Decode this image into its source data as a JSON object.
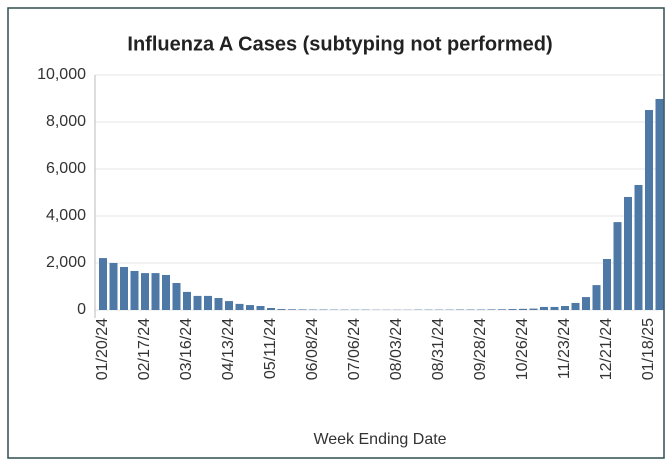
{
  "chart_data": {
    "type": "bar",
    "title": "Influenza A Cases (subtyping not performed)",
    "x_label": "Week Ending Date",
    "categories": [
      "01/20/24",
      null,
      null,
      null,
      "02/17/24",
      null,
      null,
      null,
      "03/16/24",
      null,
      null,
      null,
      "04/13/24",
      null,
      null,
      null,
      "05/11/24",
      null,
      null,
      null,
      "06/08/24",
      null,
      null,
      null,
      "07/06/24",
      null,
      null,
      null,
      "08/03/24",
      null,
      null,
      null,
      "08/31/24",
      null,
      null,
      null,
      "09/28/24",
      null,
      null,
      null,
      "10/26/24",
      null,
      null,
      null,
      "11/23/24",
      null,
      null,
      null,
      "12/21/24",
      null,
      null,
      null,
      "01/18/25",
      null
    ],
    "values": [
      2210,
      2000,
      1830,
      1660,
      1570,
      1570,
      1490,
      1150,
      770,
      600,
      600,
      510,
      380,
      260,
      210,
      170,
      85,
      40,
      30,
      25,
      20,
      20,
      15,
      15,
      15,
      15,
      10,
      10,
      10,
      10,
      15,
      15,
      15,
      15,
      20,
      20,
      20,
      25,
      30,
      40,
      50,
      60,
      130,
      130,
      170,
      300,
      550,
      1060,
      2170,
      3740,
      4810,
      5320,
      8510,
      8980
    ],
    "color": "#4e79a7",
    "ylim": [
      0,
      10000
    ],
    "yticks": [
      0,
      {
        "value": 2000,
        "label": "2,000"
      },
      {
        "value": 4000,
        "label": "4,000"
      },
      {
        "value": 6000,
        "label": "6,000"
      },
      {
        "value": 8000,
        "label": "8,000"
      },
      {
        "value": 10000,
        "label": "10,000"
      }
    ],
    "grid": true
  }
}
